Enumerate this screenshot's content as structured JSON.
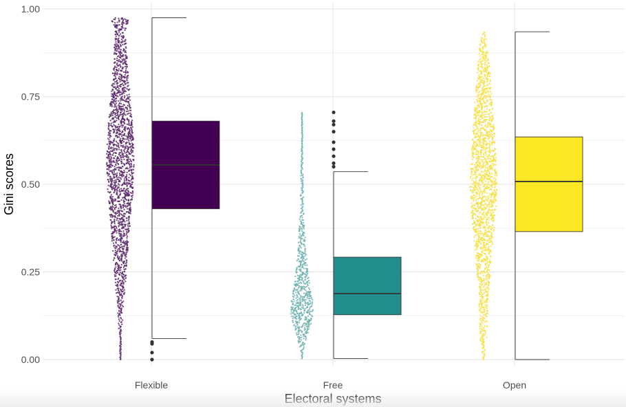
{
  "chart_data": {
    "type": "violin-box",
    "xlabel": "Electoral systems",
    "ylabel": "Gini scores",
    "ylim": [
      0,
      1
    ],
    "yticks": [
      0.0,
      0.25,
      0.5,
      0.75,
      1.0
    ],
    "ytick_labels": [
      "0.00",
      "0.25",
      "0.50",
      "0.75",
      "1.00"
    ],
    "categories": [
      "Flexible",
      "Free",
      "Open"
    ],
    "grid": true,
    "legend": "none",
    "series": [
      {
        "category": "Flexible",
        "color": "#440154",
        "dot_color": "#5c2a6b",
        "box": {
          "min": 0.06,
          "q1": 0.43,
          "median": 0.555,
          "q3": 0.68,
          "max": 0.975
        },
        "outliers": [
          0.0,
          0.02,
          0.045,
          0.05
        ],
        "density": [
          [
            0.0,
            0.4
          ],
          [
            0.03,
            0.5
          ],
          [
            0.06,
            0.7
          ],
          [
            0.1,
            1.3
          ],
          [
            0.15,
            2
          ],
          [
            0.2,
            3.3
          ],
          [
            0.25,
            4.2
          ],
          [
            0.3,
            5.1
          ],
          [
            0.35,
            6
          ],
          [
            0.4,
            7
          ],
          [
            0.45,
            8.2
          ],
          [
            0.5,
            9.1
          ],
          [
            0.55,
            9.6
          ],
          [
            0.6,
            9.4
          ],
          [
            0.65,
            8.8
          ],
          [
            0.7,
            7.8
          ],
          [
            0.75,
            6.8
          ],
          [
            0.8,
            5.6
          ],
          [
            0.85,
            4.8
          ],
          [
            0.9,
            4.2
          ],
          [
            0.93,
            3.6
          ],
          [
            0.955,
            4.5
          ],
          [
            0.965,
            6
          ],
          [
            0.975,
            3.5
          ]
        ]
      },
      {
        "category": "Free",
        "color": "#21908c",
        "dot_color": "#6fb2ae",
        "box": {
          "min": 0.003,
          "q1": 0.128,
          "median": 0.188,
          "q3": 0.292,
          "max": 0.536
        },
        "outliers": [
          0.55,
          0.56,
          0.58,
          0.6,
          0.62,
          0.65,
          0.67,
          0.68,
          0.705
        ],
        "density": [
          [
            0.003,
            0.3
          ],
          [
            0.03,
            1.2
          ],
          [
            0.06,
            3
          ],
          [
            0.1,
            6
          ],
          [
            0.14,
            8.2
          ],
          [
            0.18,
            7
          ],
          [
            0.22,
            5.2
          ],
          [
            0.26,
            4
          ],
          [
            0.3,
            3
          ],
          [
            0.35,
            2.2
          ],
          [
            0.4,
            1.6
          ],
          [
            0.45,
            1.2
          ],
          [
            0.5,
            0.9
          ],
          [
            0.55,
            0.6
          ],
          [
            0.6,
            0.4
          ],
          [
            0.65,
            0.3
          ],
          [
            0.705,
            0.2
          ]
        ]
      },
      {
        "category": "Open",
        "color": "#fde725",
        "dot_color": "#f5e14a",
        "box": {
          "min": 0.0,
          "q1": 0.365,
          "median": 0.508,
          "q3": 0.635,
          "max": 0.935
        },
        "outliers": [],
        "density": [
          [
            0.0,
            0.4
          ],
          [
            0.03,
            1.2
          ],
          [
            0.06,
            2.2
          ],
          [
            0.1,
            2.6
          ],
          [
            0.15,
            3
          ],
          [
            0.2,
            3.8
          ],
          [
            0.25,
            4.6
          ],
          [
            0.3,
            5.6
          ],
          [
            0.35,
            6.8
          ],
          [
            0.4,
            8
          ],
          [
            0.45,
            9
          ],
          [
            0.5,
            9.5
          ],
          [
            0.55,
            8.8
          ],
          [
            0.6,
            8.2
          ],
          [
            0.65,
            7.5
          ],
          [
            0.7,
            6.5
          ],
          [
            0.75,
            5.6
          ],
          [
            0.8,
            4.8
          ],
          [
            0.85,
            3.8
          ],
          [
            0.9,
            2.4
          ],
          [
            0.935,
            0.8
          ]
        ]
      }
    ]
  }
}
